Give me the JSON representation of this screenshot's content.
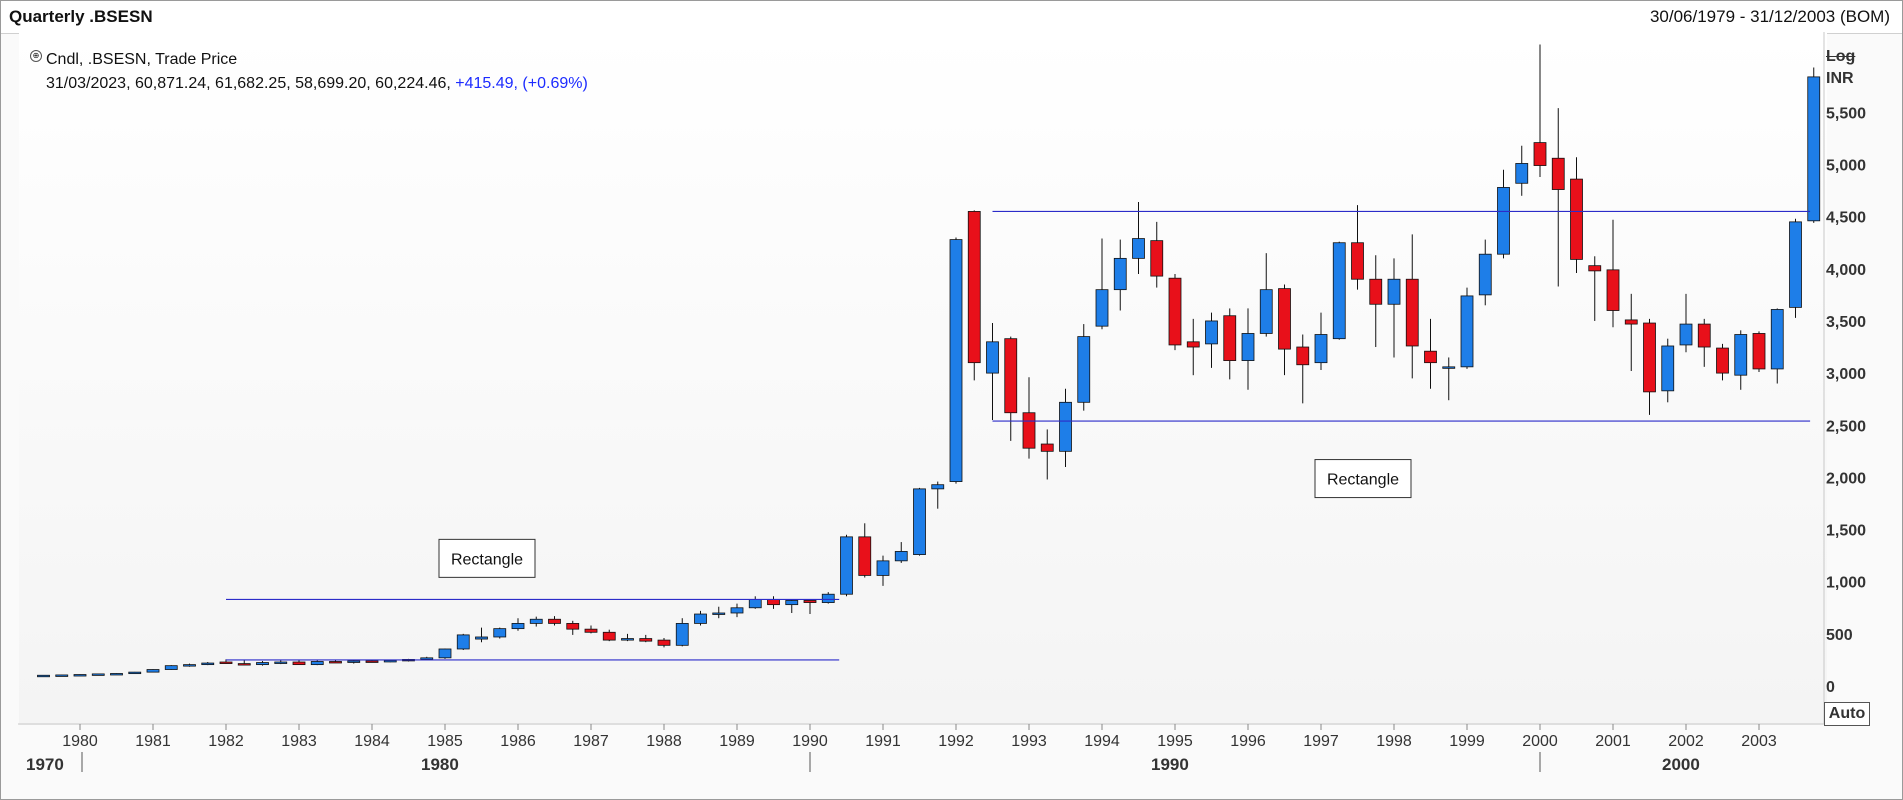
{
  "window": {
    "title": "Quarterly .BSESN",
    "date_range": "30/06/1979 - 31/12/2003 (BOM)"
  },
  "legend": {
    "line1": "Cndl, .BSESN, Trade Price",
    "ohlc": "31/03/2023, 60,871.24, 61,682.25, 58,699.20, 60,224.46, ",
    "change": "+415.49, (+0.69%)"
  },
  "axis_controls": {
    "log_label": "Log",
    "currency_label": "INR",
    "auto_label": "Auto"
  },
  "colors": {
    "up": "#1e7ee8",
    "down": "#e8101a",
    "rectangle_line": "#2c2cc9"
  },
  "chart_data": {
    "type": "candlestick",
    "title": "Quarterly .BSESN",
    "ylabel": "INR",
    "ylim": [
      -300,
      6200
    ],
    "yticks": [
      0,
      500,
      1000,
      1500,
      2000,
      2500,
      3000,
      3500,
      4000,
      4500,
      5000,
      5500
    ],
    "ytick_labels": [
      "0",
      "500",
      "1,000",
      "1,500",
      "2,000",
      "2,500",
      "3,000",
      "3,500",
      "4,000",
      "4,500",
      "5,000",
      "5,500"
    ],
    "x_year_labels": [
      "1980",
      "1981",
      "1982",
      "1983",
      "1984",
      "1985",
      "1986",
      "1987",
      "1988",
      "1989",
      "1990",
      "1991",
      "1992",
      "1993",
      "1994",
      "1995",
      "1996",
      "1997",
      "1998",
      "1999",
      "2000",
      "2001",
      "2002",
      "2003"
    ],
    "x_decade_labels": [
      {
        "label": "1970",
        "year": 1979.0
      },
      {
        "label": "1980",
        "year": 1980.0
      },
      {
        "label": "1990",
        "year": 1990.0
      },
      {
        "label": "2000",
        "year": 2000.0
      }
    ],
    "candles": [
      {
        "t": 1979.5,
        "o": 101,
        "h": 105,
        "l": 98,
        "c": 103
      },
      {
        "t": 1979.75,
        "o": 103,
        "h": 108,
        "l": 100,
        "c": 106
      },
      {
        "t": 1980.0,
        "o": 106,
        "h": 112,
        "l": 103,
        "c": 110
      },
      {
        "t": 1980.25,
        "o": 110,
        "h": 118,
        "l": 107,
        "c": 116
      },
      {
        "t": 1980.5,
        "o": 116,
        "h": 122,
        "l": 112,
        "c": 120
      },
      {
        "t": 1980.75,
        "o": 120,
        "h": 135,
        "l": 118,
        "c": 133
      },
      {
        "t": 1981.0,
        "o": 133,
        "h": 160,
        "l": 130,
        "c": 158
      },
      {
        "t": 1981.25,
        "o": 158,
        "h": 200,
        "l": 155,
        "c": 195
      },
      {
        "t": 1981.5,
        "o": 195,
        "h": 215,
        "l": 185,
        "c": 205
      },
      {
        "t": 1981.75,
        "o": 205,
        "h": 230,
        "l": 200,
        "c": 220
      },
      {
        "t": 1982.0,
        "o": 230,
        "h": 255,
        "l": 215,
        "c": 215
      },
      {
        "t": 1982.25,
        "o": 215,
        "h": 245,
        "l": 200,
        "c": 205
      },
      {
        "t": 1982.5,
        "o": 205,
        "h": 240,
        "l": 195,
        "c": 225
      },
      {
        "t": 1982.75,
        "o": 225,
        "h": 245,
        "l": 210,
        "c": 230
      },
      {
        "t": 1983.0,
        "o": 230,
        "h": 250,
        "l": 210,
        "c": 205
      },
      {
        "t": 1983.25,
        "o": 205,
        "h": 245,
        "l": 200,
        "c": 235
      },
      {
        "t": 1983.5,
        "o": 235,
        "h": 250,
        "l": 220,
        "c": 230
      },
      {
        "t": 1983.75,
        "o": 230,
        "h": 245,
        "l": 215,
        "c": 240
      },
      {
        "t": 1984.0,
        "o": 240,
        "h": 250,
        "l": 225,
        "c": 235
      },
      {
        "t": 1984.25,
        "o": 235,
        "h": 252,
        "l": 228,
        "c": 245
      },
      {
        "t": 1984.5,
        "o": 245,
        "h": 260,
        "l": 235,
        "c": 255
      },
      {
        "t": 1984.75,
        "o": 255,
        "h": 280,
        "l": 248,
        "c": 270
      },
      {
        "t": 1985.0,
        "o": 270,
        "h": 360,
        "l": 260,
        "c": 355
      },
      {
        "t": 1985.25,
        "o": 355,
        "h": 500,
        "l": 345,
        "c": 490
      },
      {
        "t": 1985.5,
        "o": 450,
        "h": 560,
        "l": 420,
        "c": 470
      },
      {
        "t": 1985.75,
        "o": 470,
        "h": 560,
        "l": 455,
        "c": 550
      },
      {
        "t": 1986.0,
        "o": 550,
        "h": 650,
        "l": 530,
        "c": 600
      },
      {
        "t": 1986.25,
        "o": 600,
        "h": 665,
        "l": 570,
        "c": 640
      },
      {
        "t": 1986.5,
        "o": 640,
        "h": 670,
        "l": 580,
        "c": 600
      },
      {
        "t": 1986.75,
        "o": 600,
        "h": 625,
        "l": 490,
        "c": 545
      },
      {
        "t": 1987.0,
        "o": 545,
        "h": 580,
        "l": 505,
        "c": 515
      },
      {
        "t": 1987.25,
        "o": 515,
        "h": 540,
        "l": 430,
        "c": 440
      },
      {
        "t": 1987.5,
        "o": 440,
        "h": 500,
        "l": 430,
        "c": 455
      },
      {
        "t": 1987.75,
        "o": 455,
        "h": 490,
        "l": 420,
        "c": 430
      },
      {
        "t": 1988.0,
        "o": 440,
        "h": 460,
        "l": 370,
        "c": 390
      },
      {
        "t": 1988.25,
        "o": 390,
        "h": 650,
        "l": 380,
        "c": 600
      },
      {
        "t": 1988.5,
        "o": 600,
        "h": 720,
        "l": 580,
        "c": 690
      },
      {
        "t": 1988.75,
        "o": 690,
        "h": 760,
        "l": 650,
        "c": 700
      },
      {
        "t": 1989.0,
        "o": 700,
        "h": 790,
        "l": 660,
        "c": 750
      },
      {
        "t": 1989.25,
        "o": 750,
        "h": 860,
        "l": 740,
        "c": 830
      },
      {
        "t": 1989.5,
        "o": 830,
        "h": 860,
        "l": 740,
        "c": 780
      },
      {
        "t": 1989.75,
        "o": 780,
        "h": 830,
        "l": 700,
        "c": 820
      },
      {
        "t": 1990.0,
        "o": 820,
        "h": 820,
        "l": 690,
        "c": 800
      },
      {
        "t": 1990.25,
        "o": 800,
        "h": 900,
        "l": 790,
        "c": 880
      },
      {
        "t": 1990.5,
        "o": 880,
        "h": 1450,
        "l": 860,
        "c": 1430
      },
      {
        "t": 1990.75,
        "o": 1430,
        "h": 1560,
        "l": 1040,
        "c": 1060
      },
      {
        "t": 1991.0,
        "o": 1060,
        "h": 1250,
        "l": 960,
        "c": 1200
      },
      {
        "t": 1991.25,
        "o": 1200,
        "h": 1380,
        "l": 1180,
        "c": 1290
      },
      {
        "t": 1991.5,
        "o": 1260,
        "h": 1900,
        "l": 1250,
        "c": 1890
      },
      {
        "t": 1991.75,
        "o": 1890,
        "h": 1960,
        "l": 1700,
        "c": 1930
      },
      {
        "t": 1992.0,
        "o": 1960,
        "h": 4300,
        "l": 1940,
        "c": 4280
      },
      {
        "t": 1992.25,
        "o": 4550,
        "h": 4560,
        "l": 2930,
        "c": 3100
      },
      {
        "t": 1992.5,
        "o": 3000,
        "h": 3480,
        "l": 2550,
        "c": 3300
      },
      {
        "t": 1992.75,
        "o": 3330,
        "h": 3350,
        "l": 2350,
        "c": 2620
      },
      {
        "t": 1993.0,
        "o": 2620,
        "h": 2960,
        "l": 2180,
        "c": 2280
      },
      {
        "t": 1993.25,
        "o": 2320,
        "h": 2460,
        "l": 1980,
        "c": 2250
      },
      {
        "t": 1993.5,
        "o": 2250,
        "h": 2850,
        "l": 2100,
        "c": 2720
      },
      {
        "t": 1993.75,
        "o": 2720,
        "h": 3470,
        "l": 2640,
        "c": 3350
      },
      {
        "t": 1994.0,
        "o": 3450,
        "h": 4290,
        "l": 3420,
        "c": 3800
      },
      {
        "t": 1994.25,
        "o": 3800,
        "h": 4280,
        "l": 3600,
        "c": 4100
      },
      {
        "t": 1994.5,
        "o": 4100,
        "h": 4640,
        "l": 3950,
        "c": 4290
      },
      {
        "t": 1994.75,
        "o": 4270,
        "h": 4450,
        "l": 3820,
        "c": 3930
      },
      {
        "t": 1995.0,
        "o": 3910,
        "h": 3950,
        "l": 3220,
        "c": 3270
      },
      {
        "t": 1995.25,
        "o": 3300,
        "h": 3520,
        "l": 2980,
        "c": 3250
      },
      {
        "t": 1995.5,
        "o": 3280,
        "h": 3580,
        "l": 3050,
        "c": 3500
      },
      {
        "t": 1995.75,
        "o": 3550,
        "h": 3620,
        "l": 2940,
        "c": 3120
      },
      {
        "t": 1996.0,
        "o": 3120,
        "h": 3620,
        "l": 2840,
        "c": 3380
      },
      {
        "t": 1996.25,
        "o": 3380,
        "h": 4150,
        "l": 3350,
        "c": 3800
      },
      {
        "t": 1996.5,
        "o": 3810,
        "h": 3850,
        "l": 2980,
        "c": 3230
      },
      {
        "t": 1996.75,
        "o": 3250,
        "h": 3370,
        "l": 2710,
        "c": 3080
      },
      {
        "t": 1997.0,
        "o": 3100,
        "h": 3580,
        "l": 3030,
        "c": 3370
      },
      {
        "t": 1997.25,
        "o": 3330,
        "h": 4260,
        "l": 3320,
        "c": 4250
      },
      {
        "t": 1997.5,
        "o": 4250,
        "h": 4610,
        "l": 3800,
        "c": 3900
      },
      {
        "t": 1997.75,
        "o": 3900,
        "h": 4130,
        "l": 3250,
        "c": 3660
      },
      {
        "t": 1998.0,
        "o": 3660,
        "h": 4100,
        "l": 3150,
        "c": 3900
      },
      {
        "t": 1998.25,
        "o": 3900,
        "h": 4330,
        "l": 2950,
        "c": 3260
      },
      {
        "t": 1998.5,
        "o": 3210,
        "h": 3520,
        "l": 2850,
        "c": 3100
      },
      {
        "t": 1998.75,
        "o": 3050,
        "h": 3150,
        "l": 2740,
        "c": 3060
      },
      {
        "t": 1999.0,
        "o": 3060,
        "h": 3820,
        "l": 3040,
        "c": 3740
      },
      {
        "t": 1999.25,
        "o": 3750,
        "h": 4280,
        "l": 3650,
        "c": 4140
      },
      {
        "t": 1999.5,
        "o": 4140,
        "h": 4950,
        "l": 4100,
        "c": 4780
      },
      {
        "t": 1999.75,
        "o": 4820,
        "h": 5180,
        "l": 4700,
        "c": 5010
      },
      {
        "t": 2000.0,
        "o": 5210,
        "h": 6150,
        "l": 4880,
        "c": 4990
      },
      {
        "t": 2000.25,
        "o": 5060,
        "h": 5540,
        "l": 3830,
        "c": 4760
      },
      {
        "t": 2000.5,
        "o": 4860,
        "h": 5070,
        "l": 3960,
        "c": 4090
      },
      {
        "t": 2000.75,
        "o": 4030,
        "h": 4120,
        "l": 3500,
        "c": 3980
      },
      {
        "t": 2001.0,
        "o": 3990,
        "h": 4470,
        "l": 3440,
        "c": 3600
      },
      {
        "t": 2001.25,
        "o": 3510,
        "h": 3760,
        "l": 3020,
        "c": 3470
      },
      {
        "t": 2001.5,
        "o": 3480,
        "h": 3520,
        "l": 2600,
        "c": 2820
      },
      {
        "t": 2001.75,
        "o": 2830,
        "h": 3330,
        "l": 2720,
        "c": 3260
      },
      {
        "t": 2002.0,
        "o": 3270,
        "h": 3760,
        "l": 3200,
        "c": 3470
      },
      {
        "t": 2002.25,
        "o": 3470,
        "h": 3520,
        "l": 3060,
        "c": 3250
      },
      {
        "t": 2002.5,
        "o": 3240,
        "h": 3280,
        "l": 2930,
        "c": 3000
      },
      {
        "t": 2002.75,
        "o": 2980,
        "h": 3410,
        "l": 2840,
        "c": 3370
      },
      {
        "t": 2003.0,
        "o": 3380,
        "h": 3400,
        "l": 3010,
        "c": 3040
      },
      {
        "t": 2003.25,
        "o": 3040,
        "h": 3620,
        "l": 2900,
        "c": 3610
      },
      {
        "t": 2003.5,
        "o": 3630,
        "h": 4480,
        "l": 3530,
        "c": 4450
      },
      {
        "t": 2003.75,
        "o": 4460,
        "h": 5930,
        "l": 4440,
        "c": 5840
      }
    ],
    "annotations": [
      {
        "type": "rectangle",
        "label": "Rectangle",
        "x0": 1982.0,
        "x1": 1990.4,
        "y0": 250,
        "y1": 830,
        "label_year": 1985.0,
        "label_y": 1195
      },
      {
        "type": "rectangle",
        "label": "Rectangle",
        "x0": 1992.5,
        "x1": 2003.7,
        "y0": 2540,
        "y1": 4550,
        "label_year": 1997.0,
        "label_y": 1960
      }
    ]
  }
}
